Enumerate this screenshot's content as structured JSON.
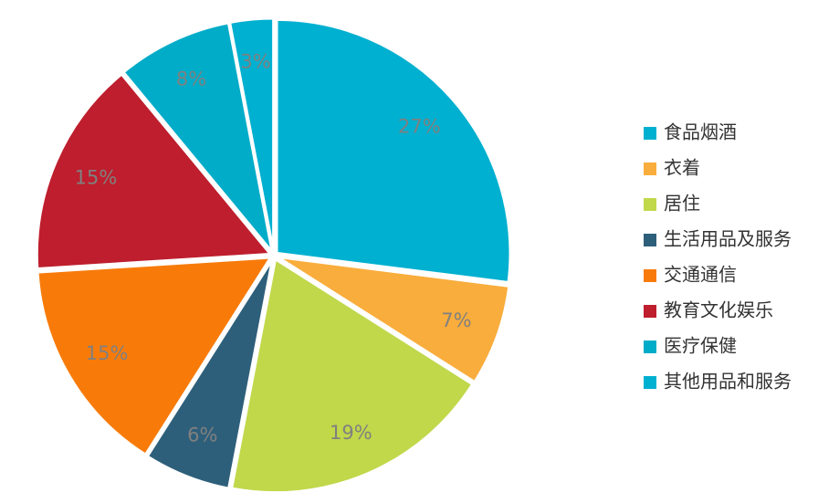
{
  "chart_data": {
    "type": "pie",
    "categories": [
      "食品烟酒",
      "衣着",
      "居住",
      "生活用品及服务",
      "交通通信",
      "教育文化娱乐",
      "医疗保健",
      "其他用品和服务"
    ],
    "values": [
      27,
      7,
      19,
      6,
      15,
      15,
      8,
      3
    ],
    "value_labels": [
      "27%",
      "7%",
      "19%",
      "6%",
      "15%",
      "15%",
      "8%",
      "3%"
    ],
    "colors": [
      "#00b0d0",
      "#f9ad3c",
      "#c0d84a",
      "#2e5f7a",
      "#f87b0a",
      "#be1e2d",
      "#00acc8",
      "#00b0d0"
    ],
    "legend": "right"
  }
}
